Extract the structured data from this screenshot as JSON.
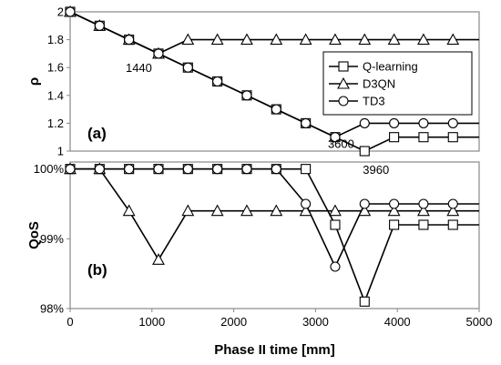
{
  "chart_data": [
    {
      "type": "line",
      "panel_label": "(a)",
      "ylabel": "ρ",
      "xlim": [
        0,
        5000
      ],
      "ylim": [
        1,
        2
      ],
      "yticks": [
        1,
        1.2,
        1.4,
        1.6,
        1.8,
        2
      ],
      "ytick_labels": [
        "1",
        "1.2",
        "1.4",
        "1.6",
        "1.8",
        "2"
      ],
      "legend_position": "right",
      "series": [
        {
          "name": "Q-learning",
          "marker": "square",
          "x": [
            0,
            360,
            720,
            1080,
            1440,
            1800,
            2160,
            2520,
            2880,
            3240,
            3600,
            3960,
            4320,
            4680,
            5000
          ],
          "y": [
            2,
            1.9,
            1.8,
            1.7,
            1.6,
            1.5,
            1.4,
            1.3,
            1.2,
            1.1,
            1.0,
            1.1,
            1.1,
            1.1,
            1.1
          ]
        },
        {
          "name": "D3QN",
          "marker": "triangle",
          "x": [
            0,
            360,
            720,
            1080,
            1440,
            1800,
            2160,
            2520,
            2880,
            3240,
            3600,
            3960,
            4320,
            4680,
            5000
          ],
          "y": [
            2,
            1.9,
            1.8,
            1.7,
            1.8,
            1.8,
            1.8,
            1.8,
            1.8,
            1.8,
            1.8,
            1.8,
            1.8,
            1.8,
            1.8
          ]
        },
        {
          "name": "TD3",
          "marker": "circle",
          "x": [
            0,
            360,
            720,
            1080,
            1440,
            1800,
            2160,
            2520,
            2880,
            3240,
            3600,
            3960,
            4320,
            4680,
            5000
          ],
          "y": [
            2,
            1.9,
            1.8,
            1.7,
            1.6,
            1.5,
            1.4,
            1.3,
            1.2,
            1.1,
            1.2,
            1.2,
            1.2,
            1.2,
            1.2
          ]
        }
      ],
      "annotations": [
        {
          "text": "1440",
          "x": 1080,
          "y": 1.7
        },
        {
          "text": "3600",
          "x": 3240,
          "y": 1.1
        },
        {
          "text": "3960",
          "x": 3600,
          "y": 1.0
        }
      ]
    },
    {
      "type": "line",
      "panel_label": "(b)",
      "xlabel": "Phase II time [mm]",
      "ylabel": "QoS",
      "xlim": [
        0,
        5000
      ],
      "ylim": [
        98.0,
        100.1
      ],
      "xticks": [
        0,
        1000,
        2000,
        3000,
        4000,
        5000
      ],
      "xtick_labels": [
        "0",
        "1000",
        "2000",
        "3000",
        "4000",
        "5000"
      ],
      "yticks": [
        98,
        99,
        100
      ],
      "ytick_labels": [
        "98%",
        "99%",
        "100%"
      ],
      "series": [
        {
          "name": "Q-learning",
          "marker": "square",
          "x": [
            0,
            360,
            720,
            1080,
            1440,
            1800,
            2160,
            2520,
            2880,
            3240,
            3600,
            3960,
            4320,
            4680,
            5000
          ],
          "y": [
            100,
            100,
            100,
            100,
            100,
            100,
            100,
            100,
            100,
            99.2,
            98.1,
            99.2,
            99.2,
            99.2,
            99.2
          ]
        },
        {
          "name": "D3QN",
          "marker": "triangle",
          "x": [
            0,
            360,
            720,
            1080,
            1440,
            1800,
            2160,
            2520,
            2880,
            3240,
            3600,
            3960,
            4320,
            4680,
            5000
          ],
          "y": [
            100,
            100,
            99.4,
            98.7,
            99.4,
            99.4,
            99.4,
            99.4,
            99.4,
            99.4,
            99.4,
            99.4,
            99.4,
            99.4,
            99.4
          ]
        },
        {
          "name": "TD3",
          "marker": "circle",
          "x": [
            0,
            360,
            720,
            1080,
            1440,
            1800,
            2160,
            2520,
            2880,
            3240,
            3600,
            3960,
            4320,
            4680,
            5000
          ],
          "y": [
            100,
            100,
            100,
            100,
            100,
            100,
            100,
            100,
            99.5,
            98.6,
            99.5,
            99.5,
            99.5,
            99.5,
            99.5
          ]
        }
      ]
    }
  ]
}
